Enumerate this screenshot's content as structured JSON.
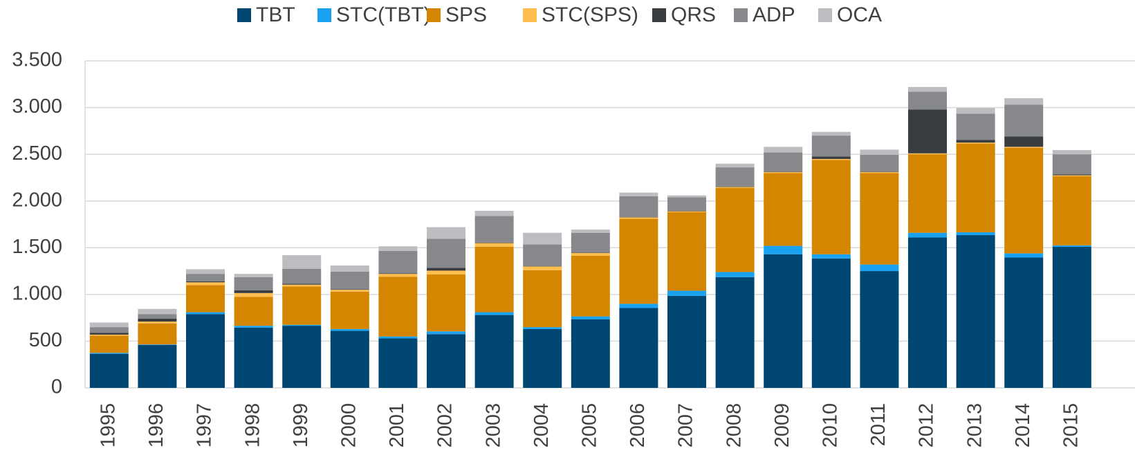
{
  "chart_data": {
    "type": "stacked_bar",
    "categories": [
      "1995",
      "1996",
      "1997",
      "1998",
      "1999",
      "2000",
      "2001",
      "2002",
      "2003",
      "2004",
      "2005",
      "2006",
      "2007",
      "2008",
      "2009",
      "2010",
      "2011",
      "2012",
      "2013",
      "2014",
      "2015"
    ],
    "series": [
      {
        "name": "TBT",
        "color": "#004672",
        "values": [
          365,
          460,
          790,
          645,
          665,
          610,
          530,
          575,
          780,
          630,
          735,
          855,
          985,
          1185,
          1430,
          1385,
          1250,
          1610,
          1635,
          1395,
          1510
        ]
      },
      {
        "name": "STC(TBT)",
        "color": "#1aa1f0",
        "values": [
          10,
          5,
          20,
          20,
          10,
          20,
          20,
          30,
          30,
          20,
          30,
          45,
          55,
          55,
          90,
          45,
          70,
          50,
          30,
          45,
          15
        ]
      },
      {
        "name": "SPS",
        "color": "#d48600",
        "values": [
          185,
          225,
          290,
          310,
          410,
          400,
          640,
          610,
          700,
          610,
          650,
          910,
          840,
          900,
          780,
          1010,
          980,
          840,
          950,
          1130,
          740
        ]
      },
      {
        "name": "STC(SPS)",
        "color": "#ffbe4d",
        "values": [
          10,
          20,
          30,
          40,
          20,
          20,
          30,
          40,
          40,
          40,
          30,
          15,
          10,
          10,
          10,
          10,
          10,
          10,
          10,
          10,
          10
        ]
      },
      {
        "name": "QRS",
        "color": "#3a3d40",
        "values": [
          20,
          30,
          10,
          30,
          10,
          5,
          5,
          30,
          5,
          5,
          5,
          5,
          5,
          5,
          5,
          25,
          5,
          470,
          30,
          110,
          10
        ]
      },
      {
        "name": "ADP",
        "color": "#87888c",
        "values": [
          60,
          50,
          80,
          140,
          160,
          190,
          240,
          310,
          285,
          230,
          210,
          220,
          145,
          205,
          205,
          225,
          180,
          190,
          280,
          340,
          215
        ]
      },
      {
        "name": "OCA",
        "color": "#bcbdc0",
        "values": [
          50,
          55,
          50,
          35,
          145,
          65,
          50,
          125,
          55,
          125,
          35,
          40,
          20,
          40,
          60,
          40,
          55,
          50,
          60,
          70,
          45
        ]
      }
    ],
    "ylim": [
      0,
      3500
    ],
    "yticks": [
      0,
      500,
      {
        "value": 1000,
        "label": "1.000"
      },
      {
        "value": 1500,
        "label": "1.500"
      },
      {
        "value": 2000,
        "label": "2.000"
      },
      {
        "value": 2500,
        "label": "2.500"
      },
      {
        "value": 3000,
        "label": "3.000"
      },
      {
        "value": 3500,
        "label": "3.500"
      }
    ],
    "grid": true,
    "legend": "top"
  }
}
